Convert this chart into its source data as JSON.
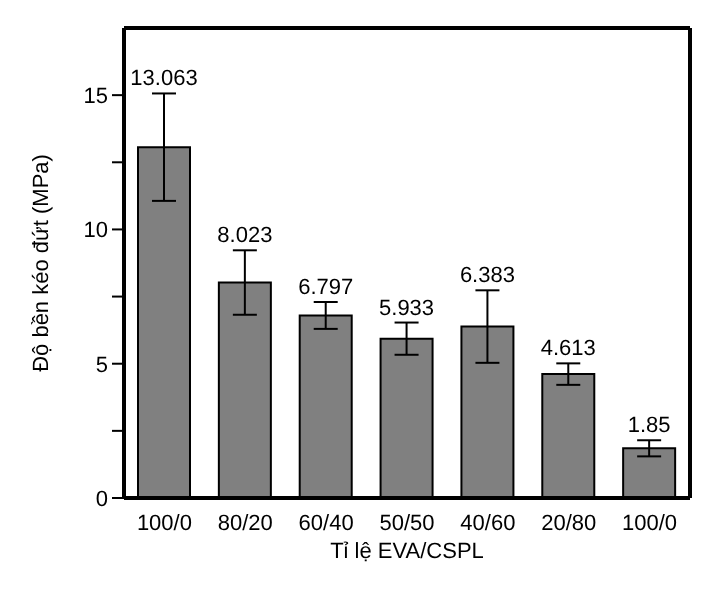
{
  "chart_data": {
    "type": "bar",
    "xlabel": "Tỉ lệ EVA/CSPL",
    "ylabel": "Độ bền kéo đứt (MPa)",
    "categories": [
      "100/0",
      "80/20",
      "60/40",
      "50/50",
      "40/60",
      "20/80",
      "100/0"
    ],
    "values": [
      13.063,
      8.023,
      6.797,
      5.933,
      6.383,
      4.613,
      1.85
    ],
    "errors": [
      2.0,
      1.2,
      0.5,
      0.6,
      1.35,
      0.4,
      0.3
    ],
    "color": "#808080",
    "ylim": [
      0,
      17.5
    ],
    "yticks": [
      0,
      {
        "value": 2.5,
        "label": null
      },
      5,
      {
        "value": 7.5,
        "label": null
      },
      10,
      {
        "value": 12.5,
        "label": null
      },
      15
    ],
    "data_labels": true,
    "grid": false,
    "legend": false
  }
}
